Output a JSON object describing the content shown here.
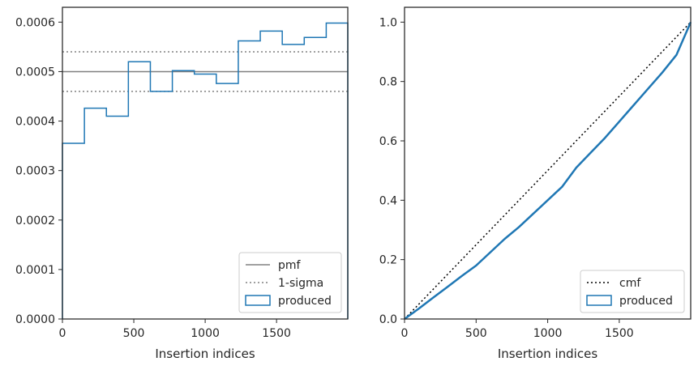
{
  "chart_data": [
    {
      "type": "step",
      "xlabel": "Insertion indices",
      "ylabel": "",
      "xlim": [
        0,
        1999
      ],
      "ylim": [
        0,
        0.00063
      ],
      "x_ticks": [
        0,
        500,
        1000,
        1500
      ],
      "x_tick_labels": [
        "0",
        "500",
        "1000",
        "1500"
      ],
      "y_ticks": [
        0,
        0.0001,
        0.0002,
        0.0003,
        0.0004,
        0.0005,
        0.0006
      ],
      "y_tick_labels": [
        "0.0000",
        "0.0001",
        "0.0002",
        "0.0003",
        "0.0004",
        "0.0005",
        "0.0006"
      ],
      "grid": false,
      "legend_position": "lower-right",
      "pmf": 0.0005,
      "sigma_band": [
        0.00046,
        0.00054
      ],
      "bin_edges": [
        0,
        154,
        308,
        462,
        616,
        770,
        924,
        1078,
        1232,
        1386,
        1540,
        1694,
        1848,
        1999
      ],
      "values": [
        0.000355,
        0.000426,
        0.00041,
        0.00052,
        0.00046,
        0.000502,
        0.000495,
        0.000476,
        0.000562,
        0.000582,
        0.000555,
        0.000569,
        0.000598
      ],
      "series": [
        {
          "name": "pmf",
          "color": "#808080",
          "style": "solid"
        },
        {
          "name": "1-sigma",
          "color": "#808080",
          "style": "dotted"
        },
        {
          "name": "produced",
          "color": "#1f77b4",
          "style": "step"
        }
      ]
    },
    {
      "type": "line",
      "xlabel": "Insertion indices",
      "ylabel": "",
      "xlim": [
        0,
        1999
      ],
      "ylim": [
        0,
        1.05
      ],
      "x_ticks": [
        0,
        500,
        1000,
        1500
      ],
      "x_tick_labels": [
        "0",
        "500",
        "1000",
        "1500"
      ],
      "y_ticks": [
        0,
        0.2,
        0.4,
        0.6,
        0.8,
        1.0
      ],
      "y_tick_labels": [
        "0.0",
        "0.2",
        "0.4",
        "0.6",
        "0.8",
        "1.0"
      ],
      "grid": false,
      "legend_position": "lower-right",
      "cmf": {
        "x": [
          0,
          1999
        ],
        "y": [
          0,
          1
        ]
      },
      "produced": {
        "x": [
          0,
          100,
          200,
          300,
          400,
          500,
          600,
          700,
          800,
          900,
          1000,
          1100,
          1200,
          1300,
          1400,
          1500,
          1600,
          1700,
          1800,
          1900,
          1999
        ],
        "y": [
          0,
          0.035,
          0.072,
          0.108,
          0.145,
          0.18,
          0.225,
          0.27,
          0.31,
          0.355,
          0.4,
          0.445,
          0.51,
          0.56,
          0.61,
          0.665,
          0.72,
          0.775,
          0.83,
          0.89,
          1.0
        ]
      },
      "series": [
        {
          "name": "cmf",
          "color": "#000000",
          "style": "dotted"
        },
        {
          "name": "produced",
          "color": "#1f77b4",
          "style": "line"
        }
      ]
    }
  ]
}
